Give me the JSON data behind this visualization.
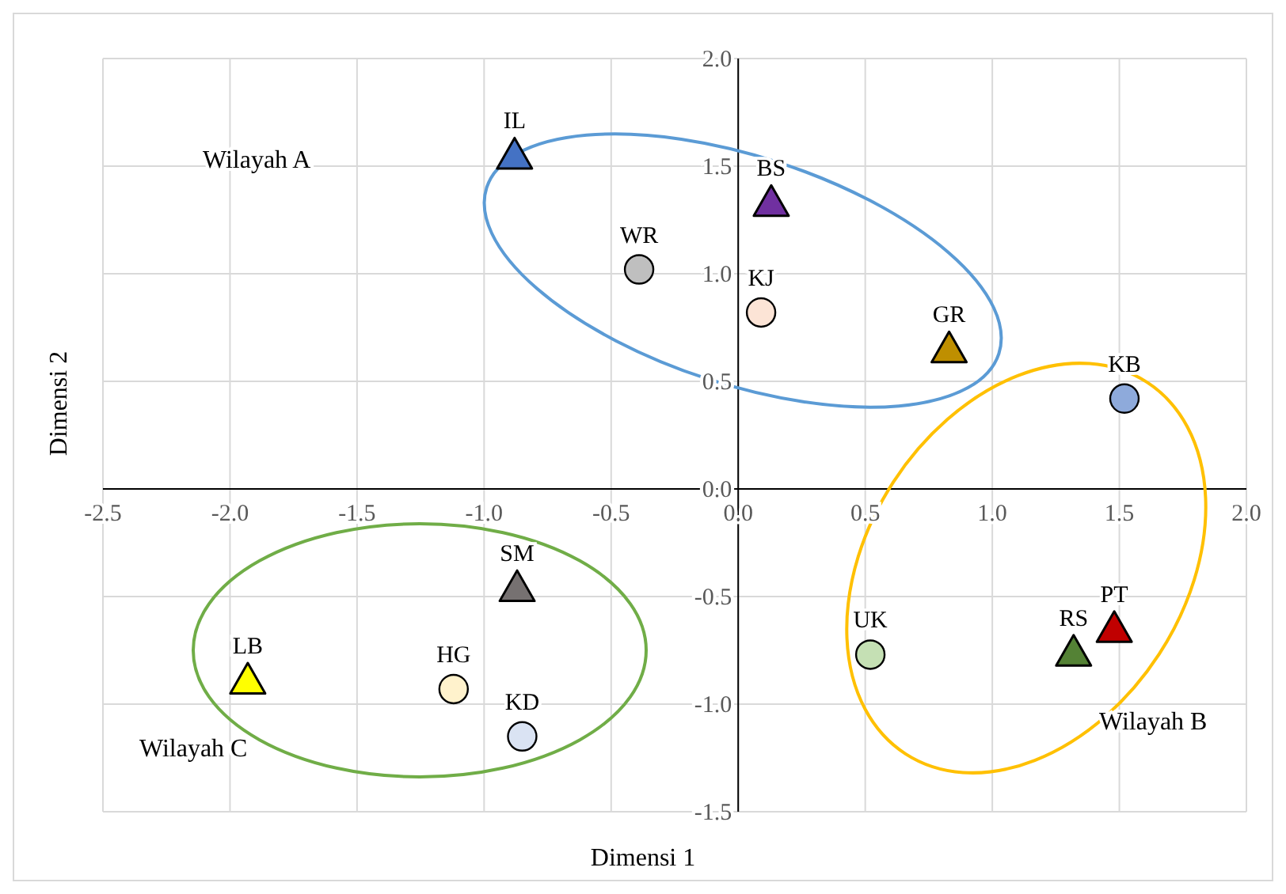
{
  "chart_data": {
    "type": "scatter",
    "xlabel": "Dimensi 1",
    "ylabel": "Dimensi 2",
    "xlim": [
      -2.5,
      2.0
    ],
    "ylim": [
      -1.5,
      2.0
    ],
    "xticks": [
      {
        "value": -2.5,
        "label": "-2.5"
      },
      {
        "value": -2.0,
        "label": "-2.0"
      },
      {
        "value": -1.5,
        "label": "-1.5"
      },
      {
        "value": -1.0,
        "label": "-1.0"
      },
      {
        "value": -0.5,
        "label": "-0.5"
      },
      {
        "value": 0.0,
        "label": "0.0"
      },
      {
        "value": 0.5,
        "label": "0.5"
      },
      {
        "value": 1.0,
        "label": "1.0"
      },
      {
        "value": 1.5,
        "label": "1.5"
      },
      {
        "value": 2.0,
        "label": "2.0"
      }
    ],
    "yticks": [
      {
        "value": -1.5,
        "label": "-1.5"
      },
      {
        "value": -1.0,
        "label": "-1.0"
      },
      {
        "value": -0.5,
        "label": "-0.5"
      },
      {
        "value": 0.0,
        "label": "0.0"
      },
      {
        "value": 0.5,
        "label": "0.5"
      },
      {
        "value": 1.0,
        "label": "1.0"
      },
      {
        "value": 1.5,
        "label": "1.5"
      },
      {
        "value": 2.0,
        "label": "2.0"
      }
    ],
    "grid": true,
    "annotations": [
      "Wilayah A",
      "Wilayah B",
      "Wilayah C"
    ],
    "series": [
      {
        "name": "IL",
        "color": "#4472c4",
        "marker": "triangle",
        "x": [
          -0.88
        ],
        "values": [
          1.55
        ]
      },
      {
        "name": "BS",
        "color": "#7030a0",
        "marker": "triangle",
        "x": [
          0.13
        ],
        "values": [
          1.33
        ]
      },
      {
        "name": "WR",
        "color": "#bfbfbf",
        "marker": "circle",
        "x": [
          -0.39
        ],
        "values": [
          1.02
        ]
      },
      {
        "name": "KJ",
        "color": "#fce4d6",
        "marker": "circle",
        "x": [
          0.09
        ],
        "values": [
          0.82
        ]
      },
      {
        "name": "GR",
        "color": "#bf8f00",
        "marker": "triangle",
        "x": [
          0.83
        ],
        "values": [
          0.65
        ]
      },
      {
        "name": "KB",
        "color": "#8eaadb",
        "marker": "circle",
        "x": [
          1.52
        ],
        "values": [
          0.42
        ]
      },
      {
        "name": "SM",
        "color": "#767171",
        "marker": "triangle",
        "x": [
          -0.87
        ],
        "values": [
          -0.46
        ]
      },
      {
        "name": "LB",
        "color": "#ffff00",
        "marker": "triangle",
        "x": [
          -1.93
        ],
        "values": [
          -0.89
        ]
      },
      {
        "name": "HG",
        "color": "#fff2cc",
        "marker": "circle",
        "x": [
          -1.12
        ],
        "values": [
          -0.93
        ]
      },
      {
        "name": "KD",
        "color": "#dae3f3",
        "marker": "circle",
        "x": [
          -0.85
        ],
        "values": [
          -1.15
        ]
      },
      {
        "name": "UK",
        "color": "#c5e0b4",
        "marker": "circle",
        "x": [
          0.52
        ],
        "values": [
          -0.77
        ]
      },
      {
        "name": "RS",
        "color": "#548235",
        "marker": "triangle",
        "x": [
          1.32
        ],
        "values": [
          -0.76
        ]
      },
      {
        "name": "PT",
        "color": "#c00000",
        "marker": "triangle",
        "x": [
          1.48
        ],
        "values": [
          -0.65
        ]
      }
    ]
  }
}
